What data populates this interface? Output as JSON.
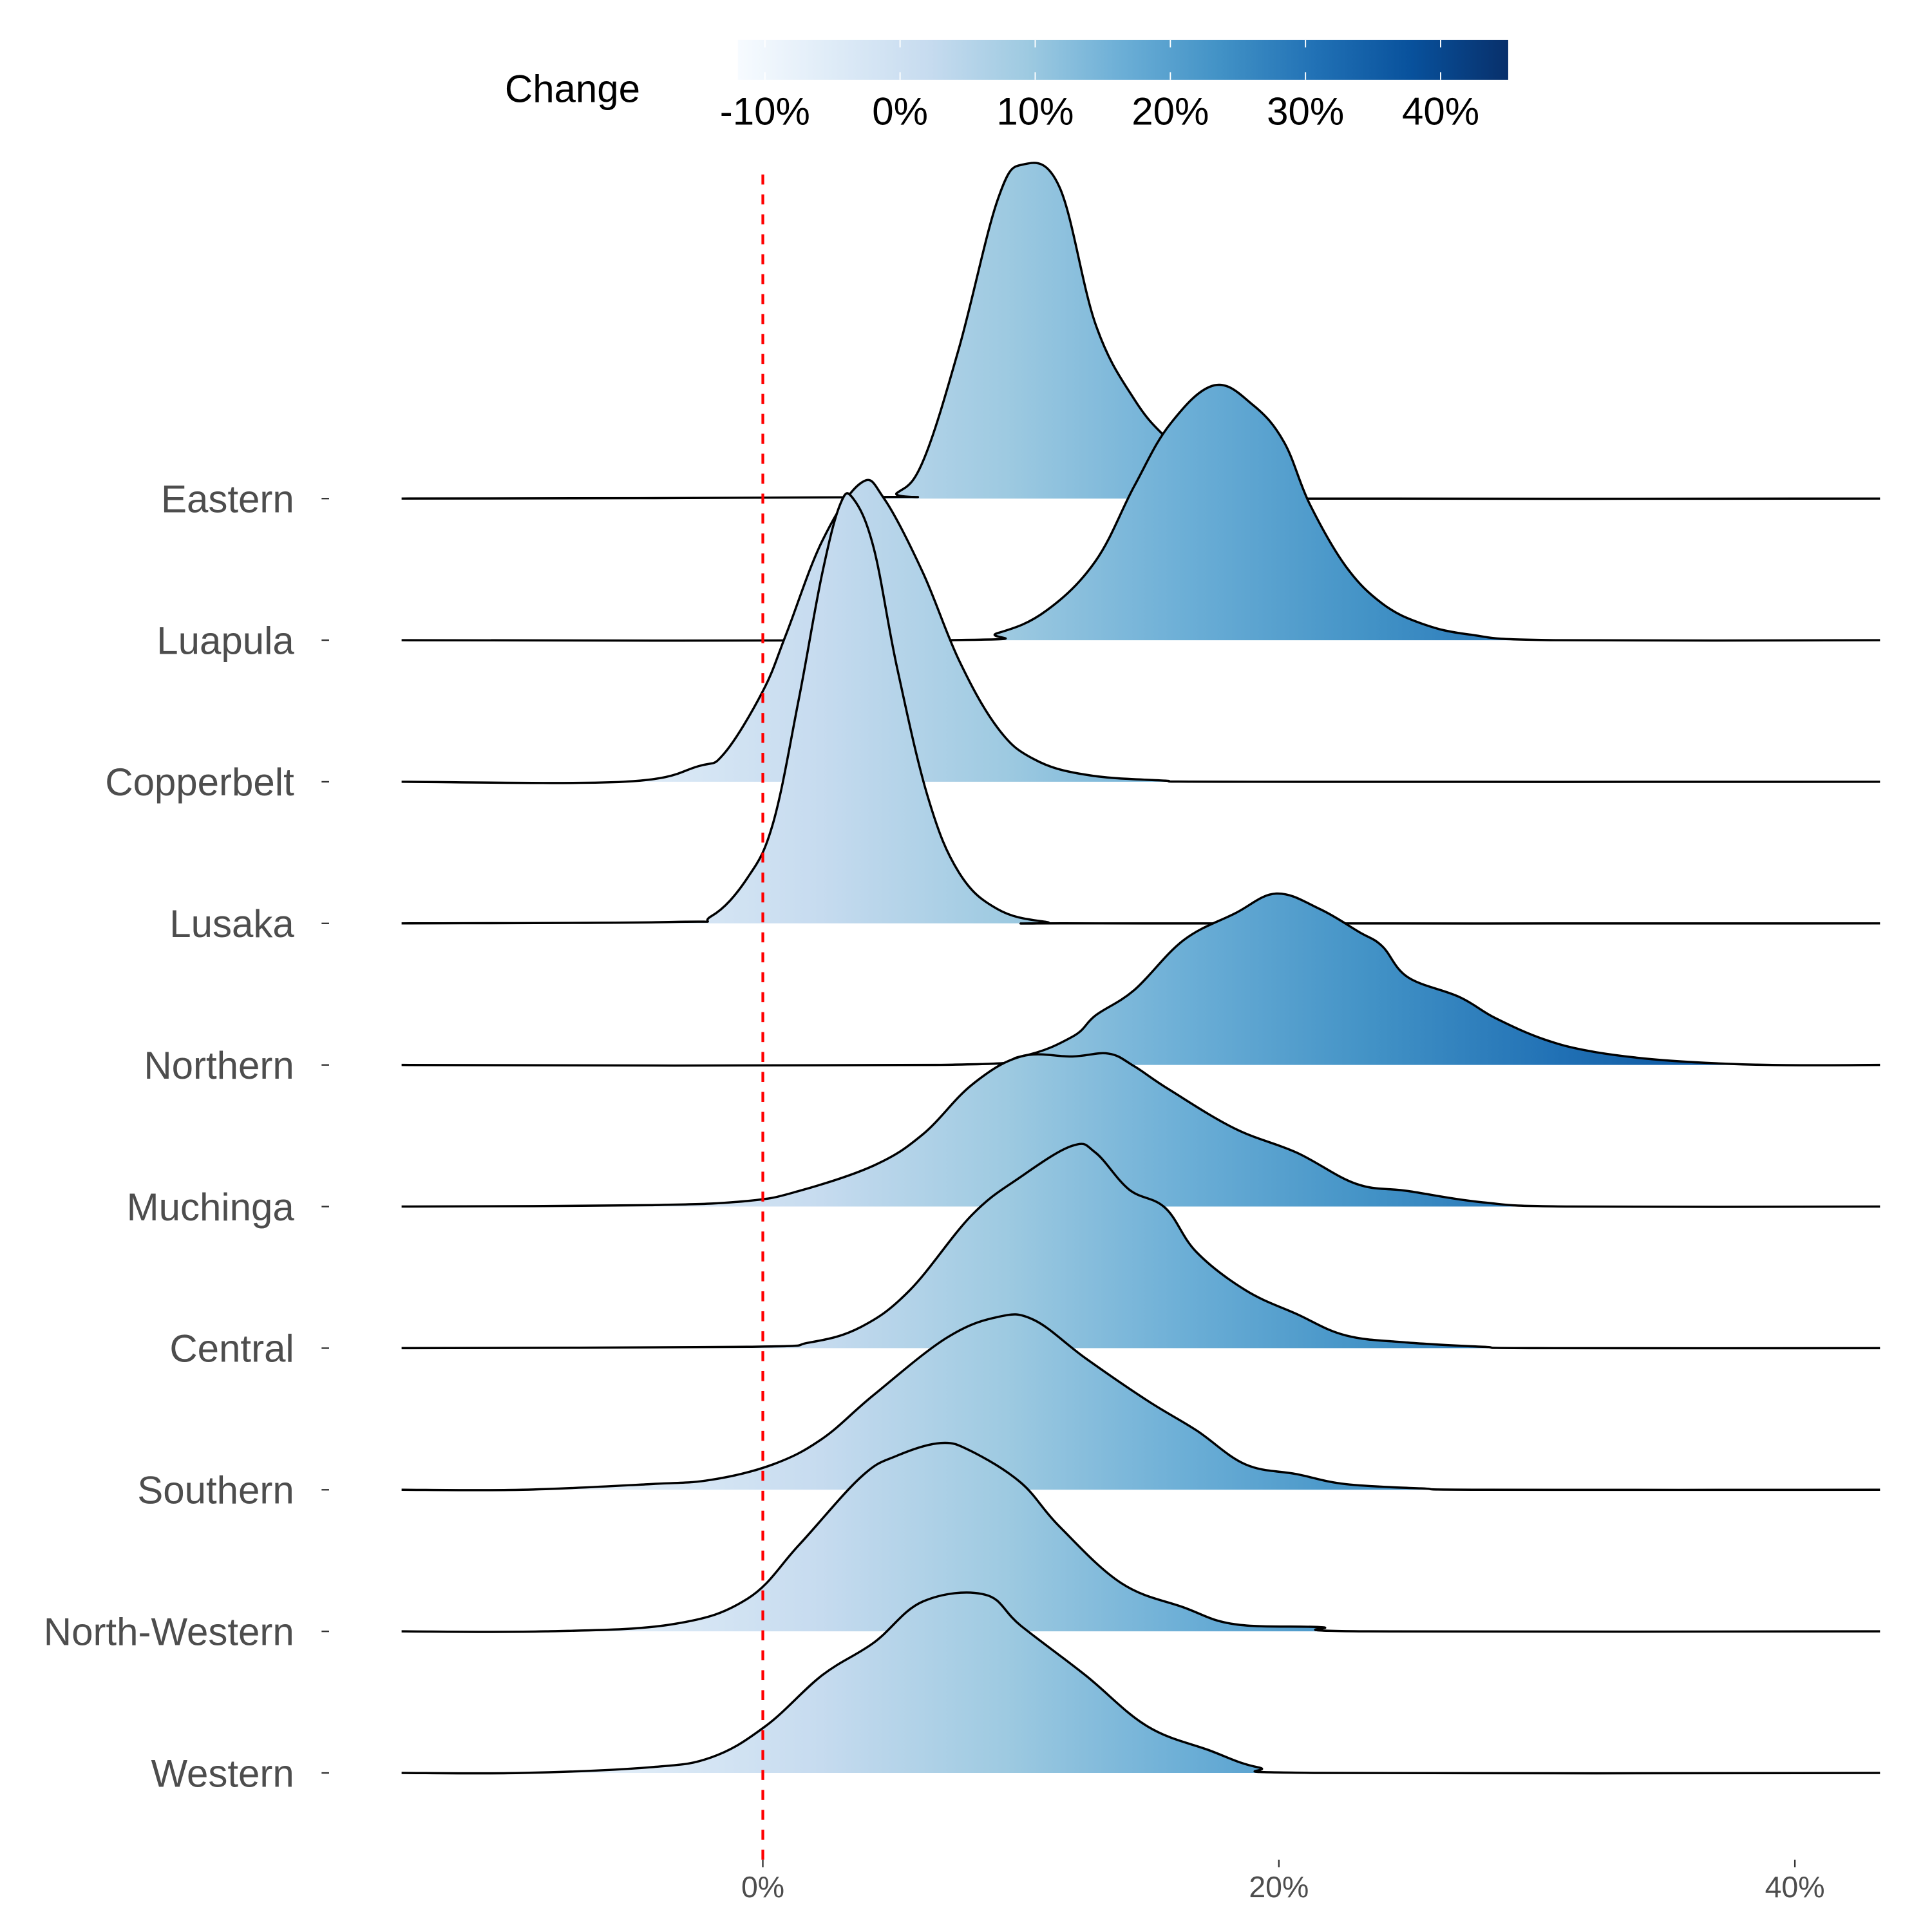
{
  "chart_data": {
    "type": "ridgeline",
    "title": "",
    "xlabel": "",
    "ylabel": "",
    "x_unit": "%",
    "xlim": [
      -14,
      43.3
    ],
    "x_ticks": [
      0,
      20,
      40
    ],
    "x_tick_labels": [
      "0%",
      "20%",
      "40%"
    ],
    "reference_line": {
      "x": 0,
      "color": "#ff0000",
      "style": "dashed"
    },
    "legend": {
      "title": "Change",
      "position": "top",
      "type": "colorbar",
      "palette": [
        "#f7fbff",
        "#deebf7",
        "#c6dbef",
        "#9ecae1",
        "#6baed6",
        "#4292c6",
        "#2171b5",
        "#08519c",
        "#08306b"
      ],
      "range": [
        -12,
        45
      ],
      "ticks": [
        -10,
        0,
        10,
        20,
        30,
        40
      ],
      "tick_labels": [
        "-10%",
        "0%",
        "10%",
        "20%",
        "30%",
        "40%"
      ]
    },
    "categories": [
      "Eastern",
      "Luapula",
      "Copperbelt",
      "Lusaka",
      "Northern",
      "Muchinga",
      "Central",
      "Southern",
      "North-Western",
      "Western"
    ],
    "series": [
      {
        "name": "Eastern",
        "points": [
          [
            -14,
            0
          ],
          [
            4.3,
            0.01
          ],
          [
            5.2,
            0.04
          ],
          [
            6.2,
            0.26
          ],
          [
            7.6,
            1.06
          ],
          [
            9.1,
            2.11
          ],
          [
            10.1,
            2.36
          ],
          [
            11.5,
            2.2
          ],
          [
            12.9,
            1.23
          ],
          [
            14.4,
            0.7
          ],
          [
            15.8,
            0.4
          ],
          [
            17.8,
            0.09
          ],
          [
            19.2,
            0.02
          ],
          [
            20.5,
            0
          ],
          [
            43.3,
            0
          ]
        ]
      },
      {
        "name": "Luapula",
        "points": [
          [
            -14,
            0
          ],
          [
            7.1,
            0
          ],
          [
            9.1,
            0.05
          ],
          [
            11,
            0.21
          ],
          [
            12.9,
            0.56
          ],
          [
            14.4,
            1.09
          ],
          [
            15.8,
            1.53
          ],
          [
            17.5,
            1.8
          ],
          [
            19,
            1.66
          ],
          [
            20.2,
            1.4
          ],
          [
            21.2,
            0.96
          ],
          [
            22.6,
            0.52
          ],
          [
            24,
            0.26
          ],
          [
            25.5,
            0.12
          ],
          [
            27.4,
            0.04
          ],
          [
            30.7,
            0
          ],
          [
            43.3,
            0
          ]
        ]
      },
      {
        "name": "Copperbelt",
        "points": [
          [
            -14,
            0
          ],
          [
            -5.4,
            0
          ],
          [
            -2.5,
            0.11
          ],
          [
            -1.5,
            0.2
          ],
          [
            0,
            0.64
          ],
          [
            0.9,
            1.04
          ],
          [
            2.3,
            1.7
          ],
          [
            3.8,
            2.11
          ],
          [
            4.7,
            2.0
          ],
          [
            6.2,
            1.48
          ],
          [
            7.6,
            0.86
          ],
          [
            9.1,
            0.38
          ],
          [
            10.5,
            0.16
          ],
          [
            12.5,
            0.05
          ],
          [
            15.4,
            0.01
          ],
          [
            19,
            0
          ],
          [
            43.3,
            0
          ]
        ]
      },
      {
        "name": "Lusaka",
        "points": [
          [
            -14,
            0
          ],
          [
            -3.5,
            0.01
          ],
          [
            -2,
            0.05
          ],
          [
            -0.6,
            0.32
          ],
          [
            0.4,
            0.71
          ],
          [
            1.4,
            1.59
          ],
          [
            2.3,
            2.47
          ],
          [
            3.0,
            2.96
          ],
          [
            3.5,
            3.0
          ],
          [
            4.3,
            2.65
          ],
          [
            5.2,
            1.81
          ],
          [
            6.4,
            0.89
          ],
          [
            7.6,
            0.36
          ],
          [
            9.1,
            0.1
          ],
          [
            11,
            0.01
          ],
          [
            13,
            0
          ],
          [
            43.3,
            0
          ]
        ]
      },
      {
        "name": "Northern",
        "points": [
          [
            -14,
            0
          ],
          [
            6.7,
            0
          ],
          [
            10,
            0.06
          ],
          [
            12,
            0.2
          ],
          [
            12.9,
            0.35
          ],
          [
            14.4,
            0.53
          ],
          [
            16.3,
            0.88
          ],
          [
            18.3,
            1.07
          ],
          [
            19.9,
            1.21
          ],
          [
            21.6,
            1.1
          ],
          [
            23.1,
            0.94
          ],
          [
            24,
            0.84
          ],
          [
            25,
            0.62
          ],
          [
            27,
            0.48
          ],
          [
            28.4,
            0.33
          ],
          [
            30.3,
            0.18
          ],
          [
            32.3,
            0.09
          ],
          [
            35.2,
            0.03
          ],
          [
            39,
            0
          ],
          [
            43.3,
            0
          ]
        ]
      },
      {
        "name": "Muchinga",
        "points": [
          [
            -14,
            0
          ],
          [
            -4.4,
            0.01
          ],
          [
            -0.6,
            0.04
          ],
          [
            1.4,
            0.11
          ],
          [
            4.3,
            0.29
          ],
          [
            6.2,
            0.51
          ],
          [
            8.1,
            0.86
          ],
          [
            10,
            1.06
          ],
          [
            12,
            1.06
          ],
          [
            13.4,
            1.08
          ],
          [
            14.4,
            0.99
          ],
          [
            15.8,
            0.82
          ],
          [
            18.3,
            0.55
          ],
          [
            20.7,
            0.38
          ],
          [
            23,
            0.16
          ],
          [
            25,
            0.11
          ],
          [
            27.9,
            0.03
          ],
          [
            31.3,
            0
          ],
          [
            43.3,
            0
          ]
        ]
      },
      {
        "name": "Central",
        "points": [
          [
            -14,
            0
          ],
          [
            -0.6,
            0.01
          ],
          [
            1.8,
            0.04
          ],
          [
            3.8,
            0.15
          ],
          [
            5.7,
            0.41
          ],
          [
            8.1,
            0.94
          ],
          [
            10,
            1.21
          ],
          [
            12,
            1.43
          ],
          [
            12.9,
            1.38
          ],
          [
            14.2,
            1.12
          ],
          [
            15.6,
            0.99
          ],
          [
            16.8,
            0.68
          ],
          [
            18.7,
            0.41
          ],
          [
            20.7,
            0.24
          ],
          [
            22.6,
            0.09
          ],
          [
            25,
            0.04
          ],
          [
            27.9,
            0.01
          ],
          [
            30,
            0
          ],
          [
            43.3,
            0
          ]
        ]
      },
      {
        "name": "Southern",
        "points": [
          [
            -14,
            0
          ],
          [
            -9.3,
            0
          ],
          [
            -4.4,
            0.04
          ],
          [
            -2,
            0.07
          ],
          [
            0.4,
            0.18
          ],
          [
            2.3,
            0.36
          ],
          [
            4.3,
            0.67
          ],
          [
            7.1,
            1.07
          ],
          [
            9.1,
            1.22
          ],
          [
            10.5,
            1.2
          ],
          [
            12.5,
            0.93
          ],
          [
            14.9,
            0.63
          ],
          [
            16.8,
            0.42
          ],
          [
            18.7,
            0.18
          ],
          [
            20.7,
            0.11
          ],
          [
            22.6,
            0.04
          ],
          [
            25.5,
            0.01
          ],
          [
            28,
            0
          ],
          [
            43.3,
            0
          ]
        ]
      },
      {
        "name": "North-Western",
        "points": [
          [
            -14,
            0
          ],
          [
            -8.4,
            0
          ],
          [
            -3.5,
            0.05
          ],
          [
            -0.6,
            0.23
          ],
          [
            1.4,
            0.61
          ],
          [
            3.8,
            1.09
          ],
          [
            5.2,
            1.24
          ],
          [
            6.9,
            1.33
          ],
          [
            8.1,
            1.27
          ],
          [
            10,
            1.05
          ],
          [
            11.5,
            0.74
          ],
          [
            13.9,
            0.34
          ],
          [
            16.3,
            0.17
          ],
          [
            18.3,
            0.05
          ],
          [
            21.6,
            0.03
          ],
          [
            23.5,
            0
          ],
          [
            43.3,
            0
          ]
        ]
      },
      {
        "name": "Western",
        "points": [
          [
            -14,
            0
          ],
          [
            -9.3,
            0
          ],
          [
            -4.4,
            0.04
          ],
          [
            -2,
            0.11
          ],
          [
            0.1,
            0.33
          ],
          [
            2.3,
            0.69
          ],
          [
            4.3,
            0.92
          ],
          [
            6.2,
            1.21
          ],
          [
            8.6,
            1.26
          ],
          [
            10,
            1.04
          ],
          [
            12.5,
            0.69
          ],
          [
            14.9,
            0.33
          ],
          [
            17.3,
            0.16
          ],
          [
            19.2,
            0.04
          ],
          [
            21.6,
            0
          ],
          [
            43.3,
            0
          ]
        ]
      }
    ]
  }
}
